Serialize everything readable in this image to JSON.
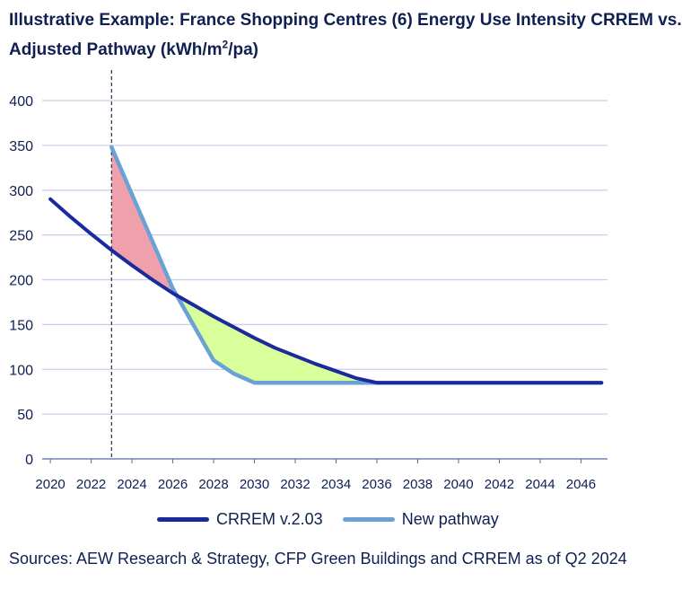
{
  "title": {
    "line1": "Illustrative Example: France Shopping Centres (6) Energy Use Intensity CRREM vs.",
    "line2_prefix": "Adjusted Pathway (kWh/m",
    "line2_sup": "2",
    "line2_suffix": "/pa)"
  },
  "source": "Sources: AEW Research & Strategy, CFP Green Buildings and CRREM as of Q2 2024",
  "colors": {
    "crrem": "#1a2a9c",
    "new_pathway": "#6aa2d6",
    "excess_fill": "#f0a0aa",
    "saving_fill": "#d9ff9a",
    "grid": "#c9cfe8",
    "axis_text": "#0f1f52",
    "marker_line": "#2a2a4a"
  },
  "chart_data": {
    "type": "line",
    "title": "Illustrative Example: France Shopping Centres (6) Energy Use Intensity CRREM vs. Adjusted Pathway (kWh/m2/pa)",
    "xlabel": "",
    "ylabel": "",
    "x_ticks": [
      "2020",
      "2022",
      "2024",
      "2026",
      "2028",
      "2030",
      "2032",
      "2034",
      "2036",
      "2038",
      "2040",
      "2042",
      "2044",
      "2046"
    ],
    "y_ticks": [
      0,
      50,
      100,
      150,
      200,
      250,
      300,
      350,
      400
    ],
    "xlim": [
      2019.6,
      2047.3
    ],
    "ylim": [
      0,
      400
    ],
    "grid": true,
    "legend_placement": "bottom",
    "vertical_marker_x": 2023,
    "series": [
      {
        "name": "CRREM v.2.03",
        "x": [
          2020,
          2021,
          2022,
          2023,
          2024,
          2025,
          2026,
          2027,
          2028,
          2029,
          2030,
          2031,
          2032,
          2033,
          2034,
          2035,
          2036,
          2037,
          2038,
          2039,
          2040,
          2041,
          2042,
          2043,
          2044,
          2045,
          2046,
          2047
        ],
        "values": [
          290,
          270,
          251,
          233,
          216,
          200,
          185,
          172,
          159,
          147,
          135,
          124,
          115,
          106,
          98,
          90,
          85,
          85,
          85,
          85,
          85,
          85,
          85,
          85,
          85,
          85,
          85,
          85
        ]
      },
      {
        "name": "New pathway",
        "x": [
          2023,
          2024,
          2025,
          2026,
          2027,
          2028,
          2029,
          2030,
          2031,
          2032,
          2033,
          2034,
          2035,
          2036,
          2037,
          2038,
          2039,
          2040,
          2041,
          2042,
          2043,
          2044,
          2045,
          2046,
          2047
        ],
        "values": [
          348,
          295,
          243,
          190,
          150,
          110,
          95,
          85,
          85,
          85,
          85,
          85,
          85,
          85,
          85,
          85,
          85,
          85,
          85,
          85,
          85,
          85,
          85,
          85,
          85
        ]
      }
    ]
  }
}
